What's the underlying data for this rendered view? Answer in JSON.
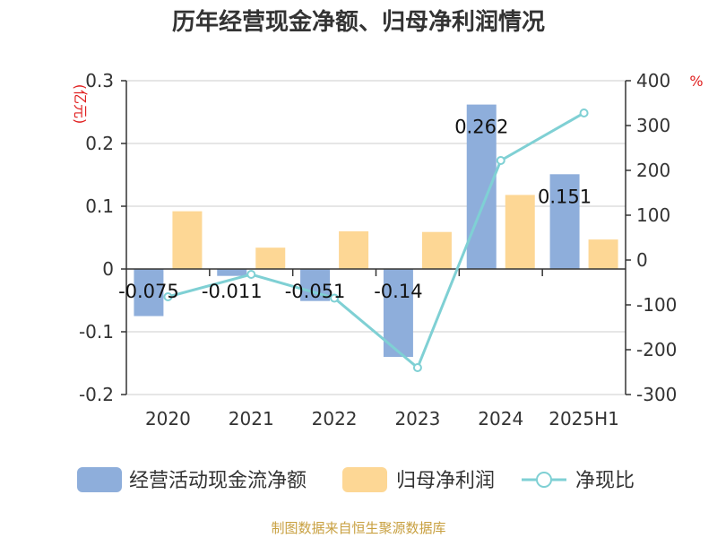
{
  "chart_data": {
    "type": "bar",
    "title": "历年经营现金净额、归母净利润情况",
    "categories": [
      "2020",
      "2021",
      "2022",
      "2023",
      "2024",
      "2025H1"
    ],
    "left_axis_unit": "(亿元)",
    "right_axis_unit": "%",
    "ylim_left": [
      -0.2,
      0.3
    ],
    "yticks_left": [
      "0.3",
      "0.2",
      "0.1",
      "0",
      "-0.1",
      "-0.2"
    ],
    "ylim_right": [
      -300,
      400
    ],
    "yticks_right": [
      "400",
      "300",
      "200",
      "100",
      "0",
      "-100",
      "-200",
      "-300"
    ],
    "grid": true,
    "legend_position": "bottom",
    "series": [
      {
        "name": "经营活动现金流净额",
        "type": "bar",
        "axis": "left",
        "color": "#8eaedb",
        "values": [
          -0.075,
          -0.011,
          -0.051,
          -0.14,
          0.262,
          0.151
        ],
        "labels": [
          "-0.075",
          "-0.011",
          "-0.051",
          "-0.14",
          "0.262",
          "0.151"
        ]
      },
      {
        "name": "归母净利润",
        "type": "bar",
        "axis": "left",
        "color": "#fdd795",
        "values": [
          0.092,
          0.034,
          0.06,
          0.059,
          0.118,
          0.047
        ]
      },
      {
        "name": "净现比",
        "type": "line",
        "axis": "right",
        "color": "#7fd0d4",
        "values": [
          -82,
          -32,
          -85,
          -240,
          222,
          328
        ]
      }
    ],
    "source": "制图数据来自恒生聚源数据库"
  }
}
